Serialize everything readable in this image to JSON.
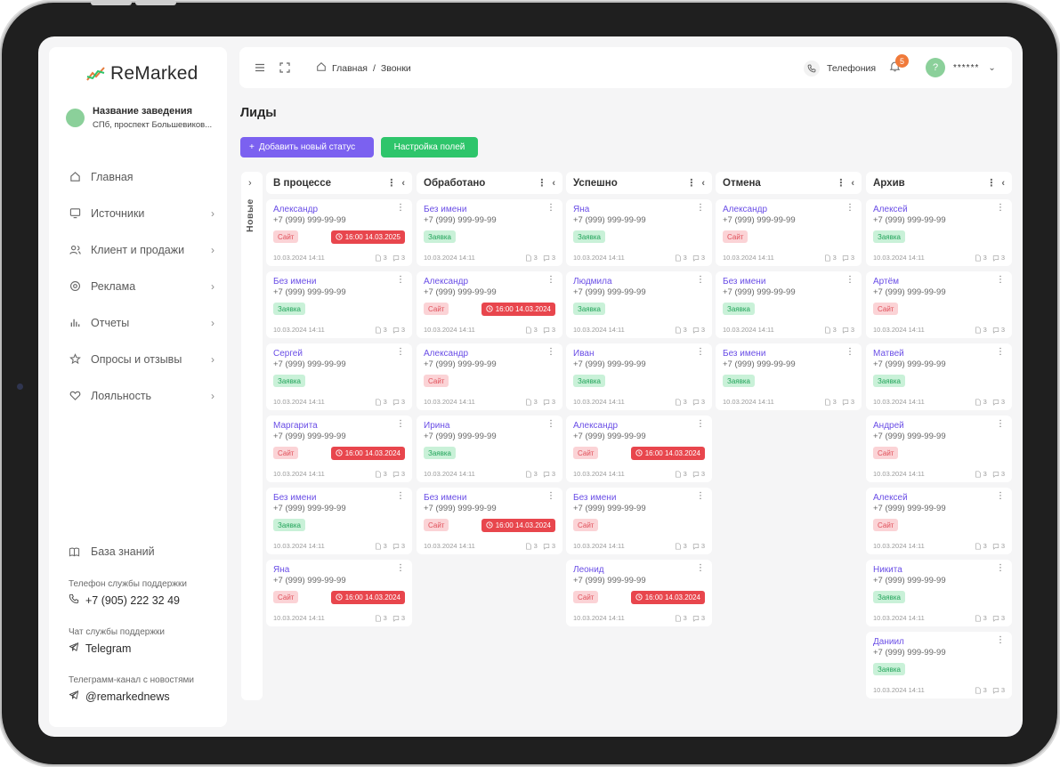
{
  "brand": {
    "name": "ReMarked"
  },
  "venue": {
    "name": "Название заведения",
    "address": "СПб, проспект Большевиков..."
  },
  "nav": [
    {
      "label": "Главная",
      "icon": "home-icon",
      "chevron": false
    },
    {
      "label": "Источники",
      "icon": "monitor-icon",
      "chevron": true
    },
    {
      "label": "Клиент и продажи",
      "icon": "users-icon",
      "chevron": true
    },
    {
      "label": "Реклама",
      "icon": "target-icon",
      "chevron": true
    },
    {
      "label": "Отчеты",
      "icon": "bar-chart-icon",
      "chevron": true
    },
    {
      "label": "Опросы и отзывы",
      "icon": "star-icon",
      "chevron": true
    },
    {
      "label": "Лояльность",
      "icon": "heart-icon",
      "chevron": true
    }
  ],
  "knowledge_base": "База знаний",
  "support": {
    "phone_caption": "Телефон службы поддержки",
    "phone": "+7 (905) 222 32 49",
    "chat_caption": "Чат службы поддержки",
    "chat": "Telegram",
    "channel_caption": "Телеграмм-канал с новостями",
    "channel": "@remarkednews"
  },
  "topbar": {
    "breadcrumb_home": "Главная",
    "breadcrumb_sep": "/",
    "breadcrumb_current": "Звонки",
    "telephony": "Телефония",
    "notifications_count": "5",
    "user_initial": "?",
    "user_name": "******"
  },
  "page": {
    "title": "Лиды",
    "add_status_button": "Добавить новый статус",
    "fields_button": "Настройка полей",
    "collapsed_column": "Новые"
  },
  "colors": {
    "accent": "#7b61f0",
    "green": "#2ec56b",
    "red": "#e8464d",
    "badge": "#f07a3a"
  },
  "columns": [
    {
      "title": "В процессе",
      "cards": [
        {
          "name": "Александр",
          "phone": "+7 (999) 999-99-99",
          "tag": "Сайт",
          "tag_type": "site",
          "deadline": "16:00 14.03.2025",
          "date": "10.03.2024 14:11",
          "files": "3",
          "comments": "3"
        },
        {
          "name": "Без имени",
          "phone": "+7 (999) 999-99-99",
          "tag": "Заявка",
          "tag_type": "req",
          "deadline": "",
          "date": "10.03.2024 14:11",
          "files": "3",
          "comments": "3"
        },
        {
          "name": "Сергей",
          "phone": "+7 (999) 999-99-99",
          "tag": "Заявка",
          "tag_type": "req",
          "deadline": "",
          "date": "10.03.2024 14:11",
          "files": "3",
          "comments": "3"
        },
        {
          "name": "Маргарита",
          "phone": "+7 (999) 999-99-99",
          "tag": "Сайт",
          "tag_type": "site",
          "deadline": "16:00 14.03.2024",
          "date": "10.03.2024 14:11",
          "files": "3",
          "comments": "3"
        },
        {
          "name": "Без имени",
          "phone": "+7 (999) 999-99-99",
          "tag": "Заявка",
          "tag_type": "req",
          "deadline": "",
          "date": "10.03.2024 14:11",
          "files": "3",
          "comments": "3"
        },
        {
          "name": "Яна",
          "phone": "+7 (999) 999-99-99",
          "tag": "Сайт",
          "tag_type": "site",
          "deadline": "16:00 14.03.2024",
          "date": "10.03.2024 14:11",
          "files": "3",
          "comments": "3"
        }
      ]
    },
    {
      "title": "Обработано",
      "cards": [
        {
          "name": "Без имени",
          "phone": "+7 (999) 999-99-99",
          "tag": "Заявка",
          "tag_type": "req",
          "deadline": "",
          "date": "10.03.2024 14:11",
          "files": "3",
          "comments": "3"
        },
        {
          "name": "Александр",
          "phone": "+7 (999) 999-99-99",
          "tag": "Сайт",
          "tag_type": "site",
          "deadline": "16:00 14.03.2024",
          "date": "10.03.2024 14:11",
          "files": "3",
          "comments": "3"
        },
        {
          "name": "Александр",
          "phone": "+7 (999) 999-99-99",
          "tag": "Сайт",
          "tag_type": "site",
          "deadline": "",
          "date": "10.03.2024 14:11",
          "files": "3",
          "comments": "3"
        },
        {
          "name": "Ирина",
          "phone": "+7 (999) 999-99-99",
          "tag": "Заявка",
          "tag_type": "req",
          "deadline": "",
          "date": "10.03.2024 14:11",
          "files": "3",
          "comments": "3"
        },
        {
          "name": "Без имени",
          "phone": "+7 (999) 999-99-99",
          "tag": "Сайт",
          "tag_type": "site",
          "deadline": "16:00 14.03.2024",
          "date": "10.03.2024 14:11",
          "files": "3",
          "comments": "3"
        }
      ]
    },
    {
      "title": "Успешно",
      "cards": [
        {
          "name": "Яна",
          "phone": "+7 (999) 999-99-99",
          "tag": "Заявка",
          "tag_type": "req",
          "deadline": "",
          "date": "10.03.2024 14:11",
          "files": "3",
          "comments": "3"
        },
        {
          "name": "Людмила",
          "phone": "+7 (999) 999-99-99",
          "tag": "Заявка",
          "tag_type": "req",
          "deadline": "",
          "date": "10.03.2024 14:11",
          "files": "3",
          "comments": "3"
        },
        {
          "name": "Иван",
          "phone": "+7 (999) 999-99-99",
          "tag": "Заявка",
          "tag_type": "req",
          "deadline": "",
          "date": "10.03.2024 14:11",
          "files": "3",
          "comments": "3"
        },
        {
          "name": "Александр",
          "phone": "+7 (999) 999-99-99",
          "tag": "Сайт",
          "tag_type": "site",
          "deadline": "16:00 14.03.2024",
          "date": "10.03.2024 14:11",
          "files": "3",
          "comments": "3"
        },
        {
          "name": "Без имени",
          "phone": "+7 (999) 999-99-99",
          "tag": "Сайт",
          "tag_type": "site",
          "deadline": "",
          "date": "10.03.2024 14:11",
          "files": "3",
          "comments": "3"
        },
        {
          "name": "Леонид",
          "phone": "+7 (999) 999-99-99",
          "tag": "Сайт",
          "tag_type": "site",
          "deadline": "16:00 14.03.2024",
          "date": "10.03.2024 14:11",
          "files": "3",
          "comments": "3"
        }
      ]
    },
    {
      "title": "Отмена",
      "cards": [
        {
          "name": "Александр",
          "phone": "+7 (999) 999-99-99",
          "tag": "Сайт",
          "tag_type": "site",
          "deadline": "",
          "date": "10.03.2024 14:11",
          "files": "3",
          "comments": "3"
        },
        {
          "name": "Без имени",
          "phone": "+7 (999) 999-99-99",
          "tag": "Заявка",
          "tag_type": "req",
          "deadline": "",
          "date": "10.03.2024 14:11",
          "files": "3",
          "comments": "3"
        },
        {
          "name": "Без имени",
          "phone": "+7 (999) 999-99-99",
          "tag": "Заявка",
          "tag_type": "req",
          "deadline": "",
          "date": "10.03.2024 14:11",
          "files": "3",
          "comments": "3"
        }
      ]
    },
    {
      "title": "Архив",
      "cards": [
        {
          "name": "Алексей",
          "phone": "+7 (999) 999-99-99",
          "tag": "Заявка",
          "tag_type": "req",
          "deadline": "",
          "date": "10.03.2024 14:11",
          "files": "3",
          "comments": "3"
        },
        {
          "name": "Артём",
          "phone": "+7 (999) 999-99-99",
          "tag": "Сайт",
          "tag_type": "site",
          "deadline": "",
          "date": "10.03.2024 14:11",
          "files": "3",
          "comments": "3"
        },
        {
          "name": "Матвей",
          "phone": "+7 (999) 999-99-99",
          "tag": "Заявка",
          "tag_type": "req",
          "deadline": "",
          "date": "10.03.2024 14:11",
          "files": "3",
          "comments": "3"
        },
        {
          "name": "Андрей",
          "phone": "+7 (999) 999-99-99",
          "tag": "Сайт",
          "tag_type": "site",
          "deadline": "",
          "date": "10.03.2024 14:11",
          "files": "3",
          "comments": "3"
        },
        {
          "name": "Алексей",
          "phone": "+7 (999) 999-99-99",
          "tag": "Сайт",
          "tag_type": "site",
          "deadline": "",
          "date": "10.03.2024 14:11",
          "files": "3",
          "comments": "3"
        },
        {
          "name": "Никита",
          "phone": "+7 (999) 999-99-99",
          "tag": "Заявка",
          "tag_type": "req",
          "deadline": "",
          "date": "10.03.2024 14:11",
          "files": "3",
          "comments": "3"
        },
        {
          "name": "Даниил",
          "phone": "+7 (999) 999-99-99",
          "tag": "Заявка",
          "tag_type": "req",
          "deadline": "",
          "date": "10.03.2024 14:11",
          "files": "3",
          "comments": "3"
        }
      ]
    }
  ]
}
